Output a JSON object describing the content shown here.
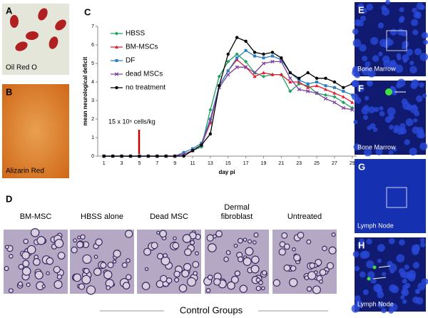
{
  "panels": {
    "A": {
      "label": "A",
      "caption": "Oil Red O"
    },
    "B": {
      "label": "B",
      "caption": "Alizarin Red"
    },
    "D": {
      "label": "D",
      "groups": [
        "BM-MSC",
        "HBSS alone",
        "Dead MSC",
        [
          "Dermal",
          "fibroblast"
        ],
        "Untreated"
      ],
      "footer": "Control Groups"
    },
    "E": {
      "label": "E",
      "caption": "Bone Marrow"
    },
    "F": {
      "label": "F",
      "caption": "Bone Marrow"
    },
    "G": {
      "label": "G",
      "caption": "Lymph Node"
    },
    "H": {
      "label": "H",
      "caption": "Lymph Node"
    }
  },
  "chart_data": {
    "type": "line",
    "panel_label": "C",
    "y_label": "mean neurological deficit",
    "x_label": "day pi",
    "annotation": "15 x 10⁶ cells/kg",
    "x": [
      1,
      2,
      3,
      4,
      5,
      6,
      7,
      8,
      9,
      10,
      11,
      12,
      13,
      14,
      15,
      16,
      17,
      18,
      19,
      20,
      21,
      22,
      23,
      24,
      25,
      26,
      27,
      28,
      29
    ],
    "xlim": [
      0.3,
      29.5
    ],
    "xticks": [
      1,
      3,
      5,
      7,
      9,
      11,
      13,
      15,
      17,
      19,
      21,
      23,
      25,
      27,
      29
    ],
    "ylim": [
      0,
      7
    ],
    "yticks": [
      0,
      1,
      2,
      3,
      4,
      5,
      6,
      7
    ],
    "series": [
      {
        "name": "HBSS",
        "color": "#1fa060",
        "marker": "diamond",
        "values": [
          0,
          0,
          0,
          0,
          0,
          0,
          0,
          0,
          0,
          0.1,
          0.3,
          0.5,
          2.5,
          4.3,
          5.1,
          5.5,
          5.1,
          4.5,
          4.3,
          4.4,
          4.4,
          3.5,
          3.9,
          3.8,
          3.4,
          3.3,
          3.2,
          2.9,
          2.6
        ]
      },
      {
        "name": "BM-MSCs",
        "color": "#e02030",
        "marker": "triangle",
        "values": [
          0,
          0,
          0,
          0,
          0,
          0,
          0,
          0,
          0,
          0.1,
          0.3,
          0.6,
          1.8,
          3.8,
          4.6,
          5.2,
          4.8,
          4.3,
          4.5,
          4.4,
          4.4,
          4.0,
          4.0,
          3.7,
          3.8,
          3.6,
          3.4,
          3.2,
          2.9
        ]
      },
      {
        "name": "DF",
        "color": "#2a7fc0",
        "marker": "square",
        "values": [
          0,
          0,
          0,
          0,
          0,
          0,
          0,
          0,
          0,
          0.2,
          0.4,
          0.7,
          2.0,
          3.8,
          4.6,
          5.3,
          5.7,
          5.4,
          5.3,
          5.4,
          5.2,
          4.5,
          4.1,
          3.9,
          4.0,
          3.8,
          3.7,
          3.5,
          3.3
        ]
      },
      {
        "name": "dead MSCs",
        "color": "#8040a0",
        "marker": "x",
        "values": [
          0,
          0,
          0,
          0,
          0,
          0,
          0,
          0,
          0,
          0.1,
          0.3,
          0.6,
          1.9,
          3.7,
          4.4,
          4.8,
          4.8,
          4.5,
          5.0,
          5.1,
          5.1,
          4.2,
          3.6,
          3.5,
          3.4,
          3.1,
          2.9,
          2.6,
          2.5
        ]
      },
      {
        "name": "no treatment",
        "color": "#000000",
        "marker": "circle",
        "values": [
          0,
          0,
          0,
          0,
          0,
          0,
          0,
          0,
          0,
          0,
          0.3,
          0.6,
          1.2,
          3.8,
          5.5,
          6.4,
          6.2,
          5.6,
          5.5,
          5.6,
          5.3,
          4.5,
          4.2,
          4.5,
          4.2,
          4.2,
          4.0,
          3.7,
          3.9
        ]
      }
    ]
  }
}
